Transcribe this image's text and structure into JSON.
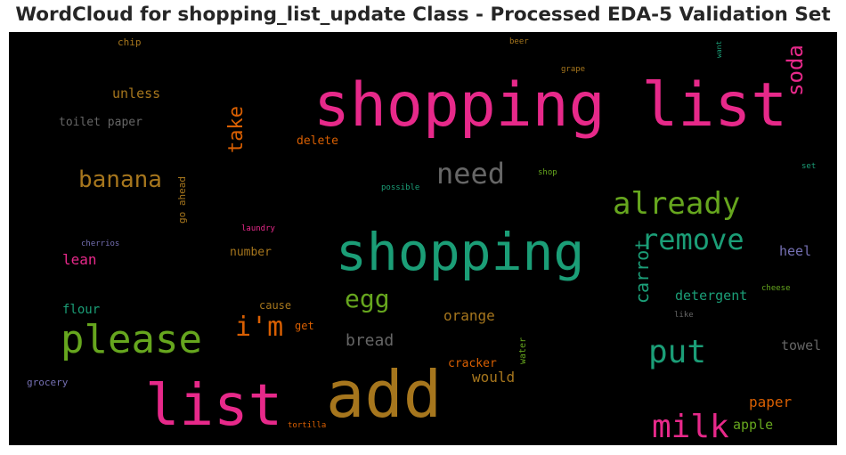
{
  "chart_data": {
    "type": "wordcloud",
    "title": "WordCloud for shopping_list_update Class - Processed EDA-5 Validation Set",
    "background": "#000000",
    "colormap": "Dark2",
    "words": [
      {
        "text": "shopping list",
        "color": "#e7298a",
        "vertical": false
      },
      {
        "text": "add",
        "color": "#a6761d",
        "vertical": false
      },
      {
        "text": "list",
        "color": "#e7298a",
        "vertical": false
      },
      {
        "text": "shopping",
        "color": "#1b9e77",
        "vertical": false
      },
      {
        "text": "please",
        "color": "#66a61e",
        "vertical": false
      },
      {
        "text": "milk",
        "color": "#e7298a",
        "vertical": false
      },
      {
        "text": "put",
        "color": "#1b9e77",
        "vertical": false
      },
      {
        "text": "already",
        "color": "#66a61e",
        "vertical": false
      },
      {
        "text": "remove",
        "color": "#1b9e77",
        "vertical": false
      },
      {
        "text": "need",
        "color": "#666666",
        "vertical": false
      },
      {
        "text": "i'm",
        "color": "#d95f02",
        "vertical": false
      },
      {
        "text": "egg",
        "color": "#66a61e",
        "vertical": false
      },
      {
        "text": "banana",
        "color": "#a6761d",
        "vertical": false
      },
      {
        "text": "soda",
        "color": "#e7298a",
        "vertical": true
      },
      {
        "text": "take",
        "color": "#d95f02",
        "vertical": true
      },
      {
        "text": "carrot",
        "color": "#1b9e77",
        "vertical": true
      },
      {
        "text": "bread",
        "color": "#666666",
        "vertical": false
      },
      {
        "text": "orange",
        "color": "#a6761d",
        "vertical": false
      },
      {
        "text": "would",
        "color": "#a6761d",
        "vertical": false
      },
      {
        "text": "detergent",
        "color": "#1b9e77",
        "vertical": false
      },
      {
        "text": "paper",
        "color": "#d95f02",
        "vertical": false
      },
      {
        "text": "towel",
        "color": "#666666",
        "vertical": false
      },
      {
        "text": "heel",
        "color": "#7570b3",
        "vertical": false
      },
      {
        "text": "lean",
        "color": "#e7298a",
        "vertical": false
      },
      {
        "text": "unless",
        "color": "#a6761d",
        "vertical": false
      },
      {
        "text": "flour",
        "color": "#1b9e77",
        "vertical": false
      },
      {
        "text": "apple",
        "color": "#66a61e",
        "vertical": false
      },
      {
        "text": "cracker",
        "color": "#d95f02",
        "vertical": false
      },
      {
        "text": "toilet paper",
        "color": "#666666",
        "vertical": false
      },
      {
        "text": "delete",
        "color": "#d95f02",
        "vertical": false
      },
      {
        "text": "number",
        "color": "#a6761d",
        "vertical": false
      },
      {
        "text": "cause",
        "color": "#a6761d",
        "vertical": false
      },
      {
        "text": "get",
        "color": "#d95f02",
        "vertical": false
      },
      {
        "text": "grocery",
        "color": "#7570b3",
        "vertical": false
      },
      {
        "text": "go ahead",
        "color": "#a6761d",
        "vertical": true
      },
      {
        "text": "chip",
        "color": "#a6761d",
        "vertical": false
      },
      {
        "text": "water",
        "color": "#66a61e",
        "vertical": true
      },
      {
        "text": "cherrios",
        "color": "#7570b3",
        "vertical": false
      },
      {
        "text": "laundry",
        "color": "#e7298a",
        "vertical": false
      },
      {
        "text": "possible",
        "color": "#1b9e77",
        "vertical": false
      },
      {
        "text": "shop",
        "color": "#66a61e",
        "vertical": false
      },
      {
        "text": "beer",
        "color": "#a6761d",
        "vertical": false
      },
      {
        "text": "grape",
        "color": "#a6761d",
        "vertical": false
      },
      {
        "text": "want",
        "color": "#1b9e77",
        "vertical": true
      },
      {
        "text": "set",
        "color": "#1b9e77",
        "vertical": false
      },
      {
        "text": "cheese",
        "color": "#66a61e",
        "vertical": false
      },
      {
        "text": "like",
        "color": "#666666",
        "vertical": false
      },
      {
        "text": "tortilla",
        "color": "#d95f02",
        "vertical": false
      }
    ]
  }
}
